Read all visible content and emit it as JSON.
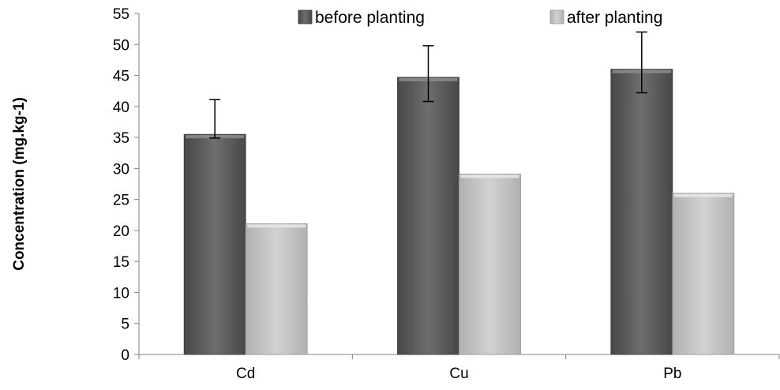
{
  "chart_data": {
    "type": "bar",
    "title": "",
    "xlabel": "",
    "ylabel": "Concentration (mg.kg-1)",
    "categories": [
      "Cd",
      "Cu",
      "Pb"
    ],
    "ylim": [
      0,
      55
    ],
    "yticks": [
      0,
      5,
      10,
      15,
      20,
      25,
      30,
      35,
      40,
      45,
      50,
      55
    ],
    "grid": false,
    "legend_position": "top",
    "series": [
      {
        "name": "before planting",
        "values": [
          35.5,
          44.7,
          46
        ],
        "error_low": [
          34.9,
          40.8,
          42.2
        ],
        "error_high": [
          41.1,
          49.8,
          52
        ],
        "color": "#5f5f5f"
      },
      {
        "name": "after planting",
        "values": [
          21.1,
          29.1,
          26
        ],
        "color": "#c3c3c3"
      }
    ]
  }
}
